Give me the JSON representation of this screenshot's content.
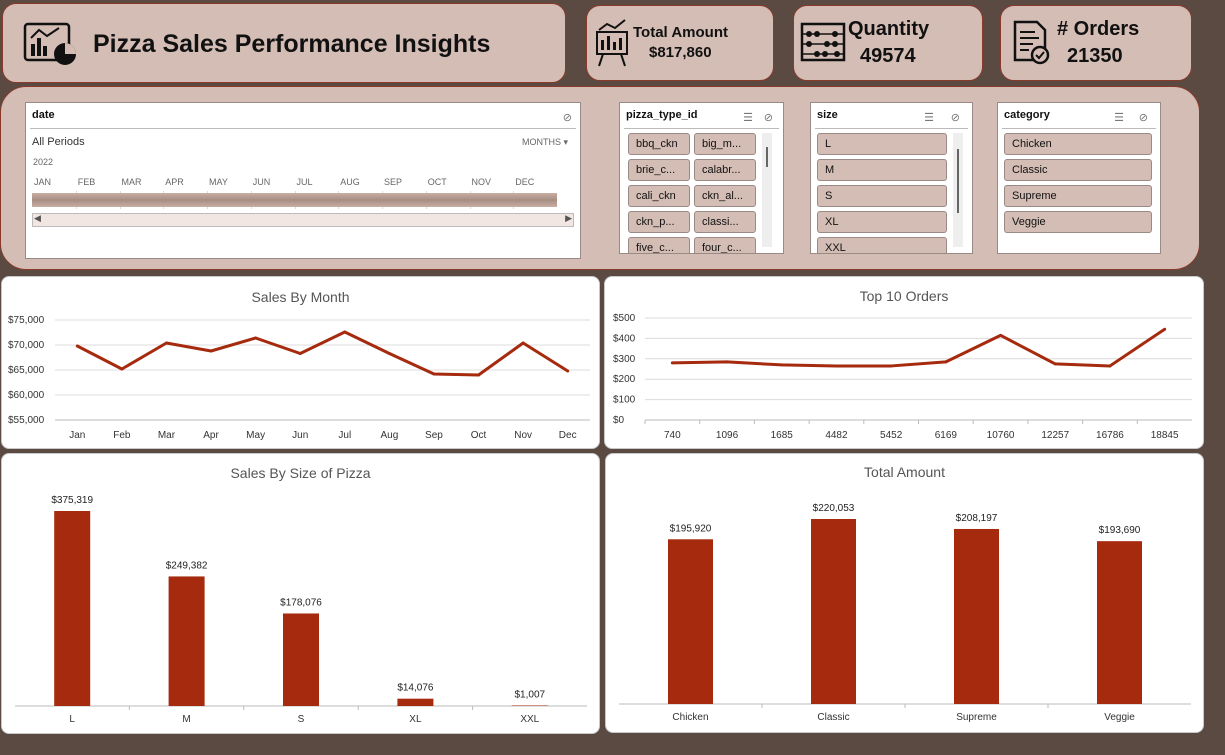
{
  "header": {
    "title": "Pizza Sales Performance Insights",
    "kpis": [
      {
        "label": "Total Amount",
        "value": "$817,860",
        "icon": "cash-register-icon"
      },
      {
        "label": "Quantity",
        "value": "49574",
        "icon": "abacus-icon"
      },
      {
        "label": "# Orders",
        "value": "21350",
        "icon": "document-check-icon"
      }
    ]
  },
  "slicers": {
    "date": {
      "title": "date",
      "period": "All Periods",
      "level": "MONTHS",
      "year": "2022",
      "months": [
        "JAN",
        "FEB",
        "MAR",
        "APR",
        "MAY",
        "JUN",
        "JUL",
        "AUG",
        "SEP",
        "OCT",
        "NOV",
        "DEC"
      ]
    },
    "pizza_type": {
      "title": "pizza_type_id",
      "items": [
        "bbq_ckn",
        "big_m...",
        "brie_c...",
        "calabr...",
        "cali_ckn",
        "ckn_al...",
        "ckn_p...",
        "classi...",
        "five_c...",
        "four_c..."
      ]
    },
    "size": {
      "title": "size",
      "items": [
        "L",
        "M",
        "S",
        "XL",
        "XXL"
      ]
    },
    "category": {
      "title": "category",
      "items": [
        "Chicken",
        "Classic",
        "Supreme",
        "Veggie"
      ]
    }
  },
  "colors": {
    "accent": "#a52a0e",
    "panel_bg": "#d4bdb5",
    "page_bg": "#5a4a42"
  },
  "chart_data": [
    {
      "type": "line",
      "title": "Sales By Month",
      "categories": [
        "Jan",
        "Feb",
        "Mar",
        "Apr",
        "May",
        "Jun",
        "Jul",
        "Aug",
        "Sep",
        "Oct",
        "Nov",
        "Dec"
      ],
      "values": [
        69800,
        65200,
        70400,
        68800,
        71400,
        68300,
        72600,
        68300,
        64200,
        64000,
        70400,
        64800
      ],
      "ylim": [
        55000,
        75000
      ],
      "yticks": [
        55000,
        60000,
        65000,
        70000,
        75000
      ],
      "ytick_labels": [
        "$55,000",
        "$60,000",
        "$65,000",
        "$70,000",
        "$75,000"
      ]
    },
    {
      "type": "line",
      "title": "Top 10 Orders",
      "categories": [
        "740",
        "1096",
        "1685",
        "4482",
        "5452",
        "6169",
        "10760",
        "12257",
        "16786",
        "18845"
      ],
      "values": [
        280,
        285,
        270,
        265,
        265,
        285,
        415,
        275,
        265,
        445
      ],
      "ylim": [
        0,
        500
      ],
      "yticks": [
        0,
        100,
        200,
        300,
        400,
        500
      ],
      "ytick_labels": [
        "$0",
        "$100",
        "$200",
        "$300",
        "$400",
        "$500"
      ]
    },
    {
      "type": "bar",
      "title": "Sales By Size of Pizza",
      "categories": [
        "L",
        "M",
        "S",
        "XL",
        "XXL"
      ],
      "values": [
        375319,
        249382,
        178076,
        14076,
        1007
      ],
      "value_labels": [
        "$375,319",
        "$249,382",
        "$178,076",
        "$14,076",
        "$1,007"
      ],
      "ylim": [
        0,
        375319
      ]
    },
    {
      "type": "bar",
      "title": "Total Amount",
      "categories": [
        "Chicken",
        "Classic",
        "Supreme",
        "Veggie"
      ],
      "values": [
        195920,
        220053,
        208197,
        193690
      ],
      "value_labels": [
        "$195,920",
        "$220,053",
        "$208,197",
        "$193,690"
      ],
      "ylim": [
        0,
        220053
      ]
    }
  ]
}
